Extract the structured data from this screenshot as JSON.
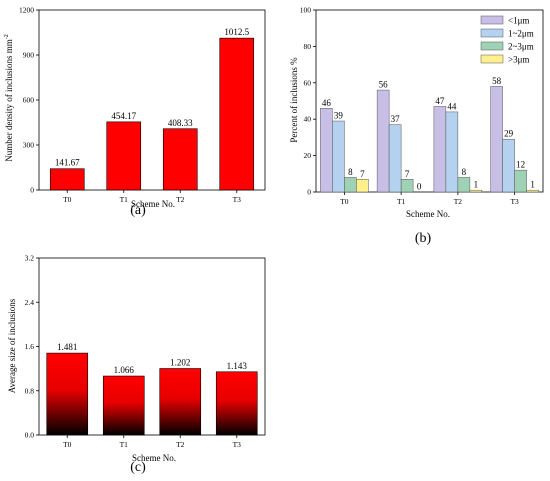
{
  "chart_data": [
    {
      "type": "bar",
      "panel_label": "(a)",
      "xlabel": "Scheme No.",
      "ylabel": "Number density of inclusions  mm",
      "ylabel_sup": "-2",
      "categories": [
        "T0",
        "T1",
        "T2",
        "T3"
      ],
      "values": [
        141.67,
        454.17,
        408.33,
        1012.5
      ],
      "data_labels": [
        "141.67",
        "454.17",
        "408.33",
        "1012.5"
      ],
      "ylim": [
        0,
        1200
      ],
      "yticks": [
        "0",
        "300",
        "600",
        "900",
        "1200"
      ],
      "bar_color": "#ff0000",
      "grid": false
    },
    {
      "type": "bar",
      "panel_label": "(b)",
      "xlabel": "Scheme No.",
      "ylabel": "Percent of inclusions %",
      "categories": [
        "T0",
        "T1",
        "T2",
        "T3"
      ],
      "ylim": [
        0,
        100
      ],
      "yticks": [
        "0",
        "20",
        "40",
        "60",
        "80",
        "100"
      ],
      "legend_position": "top-right",
      "series": [
        {
          "name": "<1μm",
          "color": "#c8bfe7",
          "values": [
            46,
            56,
            47,
            58
          ],
          "labels": [
            "46",
            "56",
            "47",
            "58"
          ]
        },
        {
          "name": "1~2μm",
          "color": "#b4d2f0",
          "values": [
            39,
            37,
            44,
            29
          ],
          "labels": [
            "39",
            "37",
            "44",
            "29"
          ]
        },
        {
          "name": "2~3μm",
          "color": "#9fd2b4",
          "values": [
            8,
            7,
            8,
            12
          ],
          "labels": [
            "8",
            "7",
            "8",
            "12"
          ]
        },
        {
          "name": ">3μm",
          "color": "#fff08c",
          "values": [
            7,
            0,
            1,
            1
          ],
          "labels": [
            "7",
            "0",
            "1",
            "1"
          ]
        }
      ],
      "grid": false
    },
    {
      "type": "bar",
      "panel_label": "(c)",
      "xlabel": "Scheme No.",
      "ylabel": "Average size of inclusions",
      "categories": [
        "T0",
        "T1",
        "T2",
        "T3"
      ],
      "values": [
        1.481,
        1.066,
        1.202,
        1.143
      ],
      "data_labels": [
        "1.481",
        "1.066",
        "1.202",
        "1.143"
      ],
      "ylim": [
        0,
        3.2
      ],
      "yticks": [
        "0.0",
        "0.8",
        "1.6",
        "2.4",
        "3.2"
      ],
      "bar_gradient": [
        "#ff0000",
        "#000000"
      ],
      "grid": false
    }
  ]
}
